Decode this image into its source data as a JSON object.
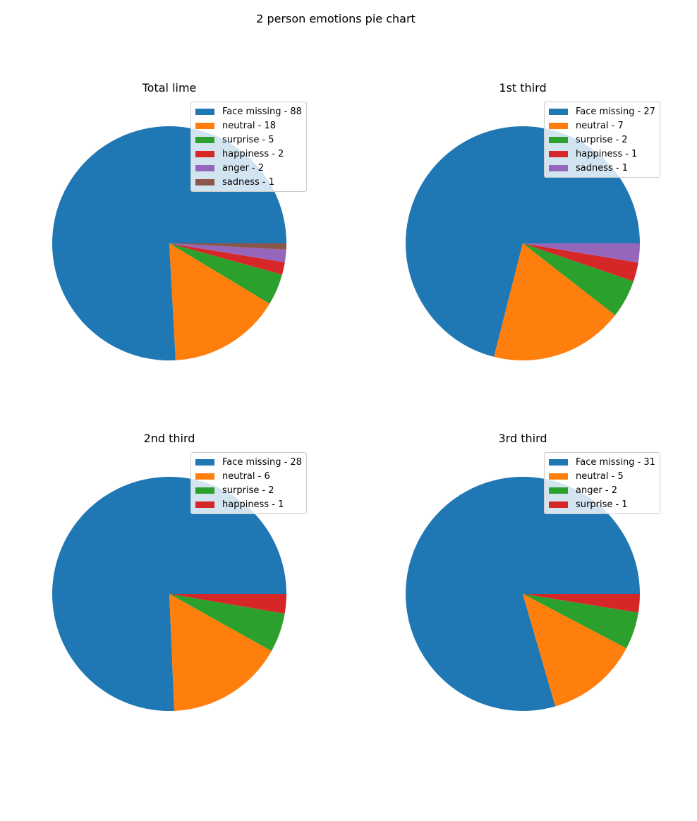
{
  "figure": {
    "title": "2 person emotions pie chart"
  },
  "colors": {
    "blue": "#1f77b4",
    "orange": "#ff7f0e",
    "green": "#2ca02c",
    "red": "#d62728",
    "purple": "#9467bd",
    "brown": "#8c564b"
  },
  "panels": [
    {
      "title": "Total lime",
      "legend": [
        "Face missing - 88",
        "neutral - 18",
        "surprise - 5",
        "happiness - 2",
        "anger - 2",
        "sadness - 1"
      ]
    },
    {
      "title": "1st third",
      "legend": [
        "Face missing - 27",
        "neutral - 7",
        "surprise - 2",
        "happiness - 1",
        "sadness - 1"
      ]
    },
    {
      "title": "2nd third",
      "legend": [
        "Face missing - 28",
        "neutral - 6",
        "surprise - 2",
        "happiness - 1"
      ]
    },
    {
      "title": "3rd third",
      "legend": [
        "Face missing - 31",
        "neutral - 5",
        "anger - 2",
        "surprise - 1"
      ]
    }
  ],
  "chart_data": [
    {
      "type": "pie",
      "title": "Total lime",
      "labels": [
        "Face missing",
        "neutral",
        "surprise",
        "happiness",
        "anger",
        "sadness"
      ],
      "values": [
        88,
        18,
        5,
        2,
        2,
        1
      ],
      "colors": [
        "#1f77b4",
        "#ff7f0e",
        "#2ca02c",
        "#d62728",
        "#9467bd",
        "#8c564b"
      ],
      "legend_position": "upper right",
      "startangle": 0
    },
    {
      "type": "pie",
      "title": "1st third",
      "labels": [
        "Face missing",
        "neutral",
        "surprise",
        "happiness",
        "sadness"
      ],
      "values": [
        27,
        7,
        2,
        1,
        1
      ],
      "colors": [
        "#1f77b4",
        "#ff7f0e",
        "#2ca02c",
        "#d62728",
        "#9467bd"
      ],
      "legend_position": "upper right",
      "startangle": 0
    },
    {
      "type": "pie",
      "title": "2nd third",
      "labels": [
        "Face missing",
        "neutral",
        "surprise",
        "happiness"
      ],
      "values": [
        28,
        6,
        2,
        1
      ],
      "colors": [
        "#1f77b4",
        "#ff7f0e",
        "#2ca02c",
        "#d62728"
      ],
      "legend_position": "upper right",
      "startangle": 0
    },
    {
      "type": "pie",
      "title": "3rd third",
      "labels": [
        "Face missing",
        "neutral",
        "anger",
        "surprise"
      ],
      "values": [
        31,
        5,
        2,
        1
      ],
      "colors": [
        "#1f77b4",
        "#ff7f0e",
        "#2ca02c",
        "#d62728"
      ],
      "legend_position": "upper right",
      "startangle": 0
    }
  ]
}
